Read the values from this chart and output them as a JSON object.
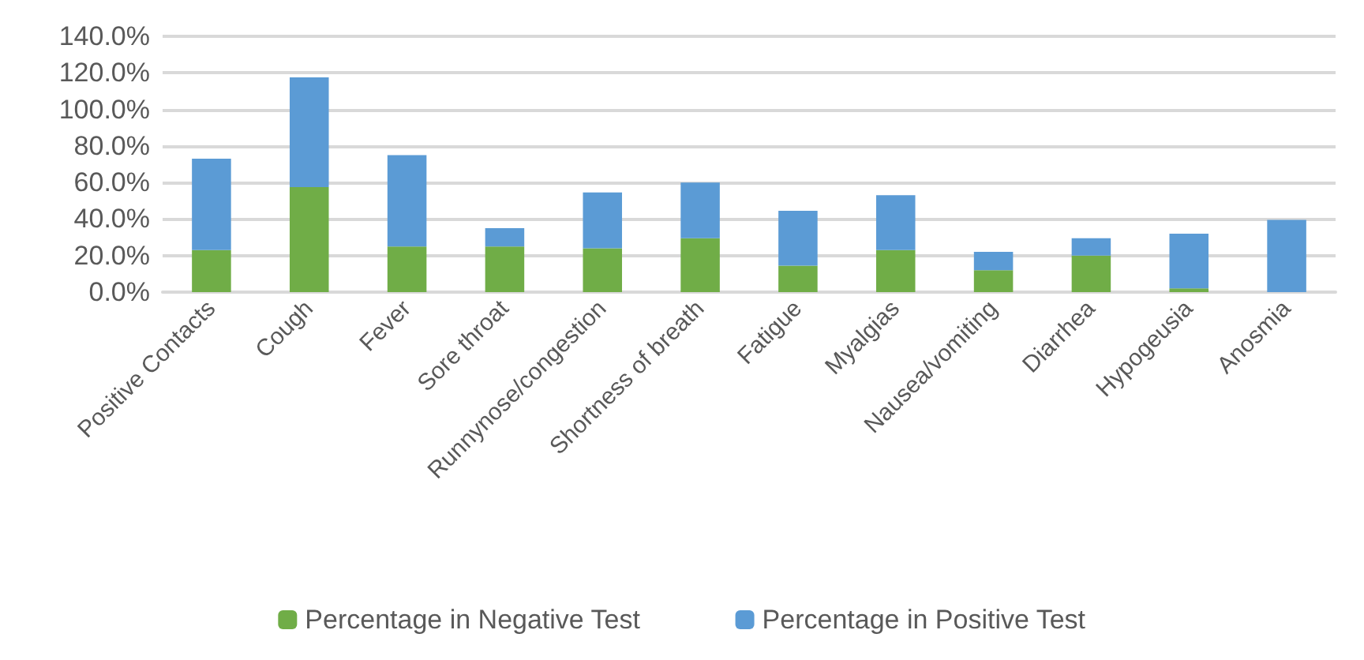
{
  "chart_data": {
    "type": "bar",
    "stacked": true,
    "categories": [
      "Positive Contacts",
      "Cough",
      "Fever",
      "Sore throat",
      "Runnynose/congestion",
      "Shortness of breath",
      "Fatigue",
      "Myalgias",
      "Nausea/vomiting",
      "Diarrhea",
      "Hypogeusia",
      "Anosmia"
    ],
    "series": [
      {
        "name": "Percentage in Negative Test",
        "color": "#70ad47",
        "values": [
          23,
          57.5,
          25,
          25,
          24,
          29.5,
          14.5,
          23,
          12,
          20,
          2,
          0
        ]
      },
      {
        "name": "Percentage in Positive Test",
        "color": "#5b9bd5",
        "values": [
          50,
          60,
          50,
          10,
          30.5,
          30.5,
          30,
          30,
          10,
          9.5,
          30,
          39.5
        ]
      }
    ],
    "ylim": [
      0,
      140
    ],
    "yticks": [
      {
        "value": 0,
        "label": "0.0%"
      },
      {
        "value": 20,
        "label": "20.0%"
      },
      {
        "value": 40,
        "label": "40.0%"
      },
      {
        "value": 60,
        "label": "60.0%"
      },
      {
        "value": 80,
        "label": "80.0%"
      },
      {
        "value": 100,
        "label": "100.0%"
      },
      {
        "value": 120,
        "label": "120.0%"
      },
      {
        "value": 140,
        "label": "140.0%"
      }
    ],
    "grid": "y",
    "legend": "bottom"
  }
}
